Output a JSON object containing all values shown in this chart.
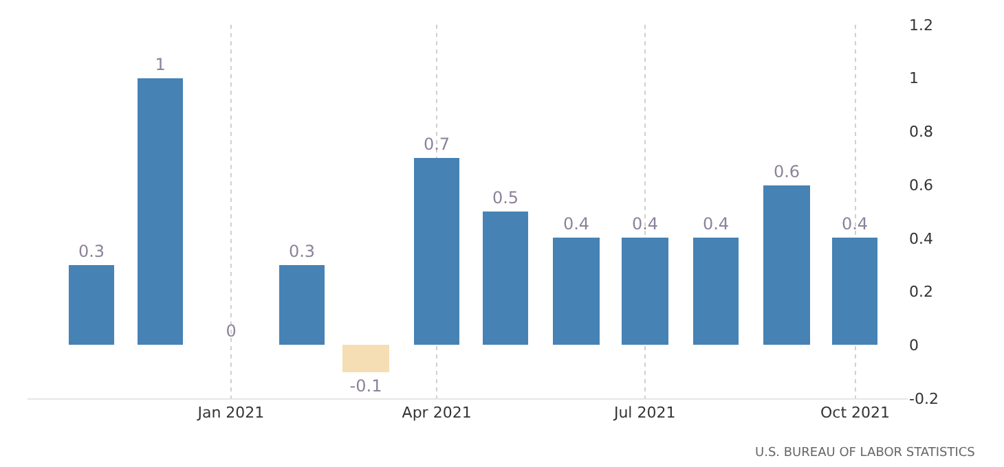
{
  "chart_data": {
    "type": "bar",
    "x": [
      "2020-11",
      "2020-12",
      "2021-01",
      "2021-02",
      "2021-03",
      "2021-04",
      "2021-05",
      "2021-06",
      "2021-07",
      "2021-08",
      "2021-09",
      "2021-10"
    ],
    "values": [
      0.3,
      1,
      0,
      0.3,
      -0.1,
      0.7,
      0.5,
      0.4,
      0.4,
      0.4,
      0.6,
      0.4
    ],
    "colors": [
      "#4682b4",
      "#4682b4",
      "#4682b4",
      "#4682b4",
      "#f5deb3",
      "#4682b4",
      "#4682b4",
      "#4682b4",
      "#4682b4",
      "#4682b4",
      "#4682b4",
      "#4682b4"
    ],
    "data_labels": true,
    "xlim": [
      "2020-10-04",
      "2021-10-24"
    ],
    "xticks": [
      {
        "value": "2021-01",
        "label": "Jan 2021"
      },
      {
        "value": "2021-04",
        "label": "Apr 2021"
      },
      {
        "value": "2021-07",
        "label": "Jul 2021"
      },
      {
        "value": "2021-10",
        "label": "Oct 2021"
      }
    ],
    "ylim": [
      -0.2,
      1.2
    ],
    "yticks": [
      -0.2,
      0,
      0.2,
      0.4,
      0.6,
      0.8,
      1,
      1.2
    ],
    "grid": "x",
    "annotations": [
      "U.S. BUREAU OF LABOR STATISTICS"
    ]
  }
}
